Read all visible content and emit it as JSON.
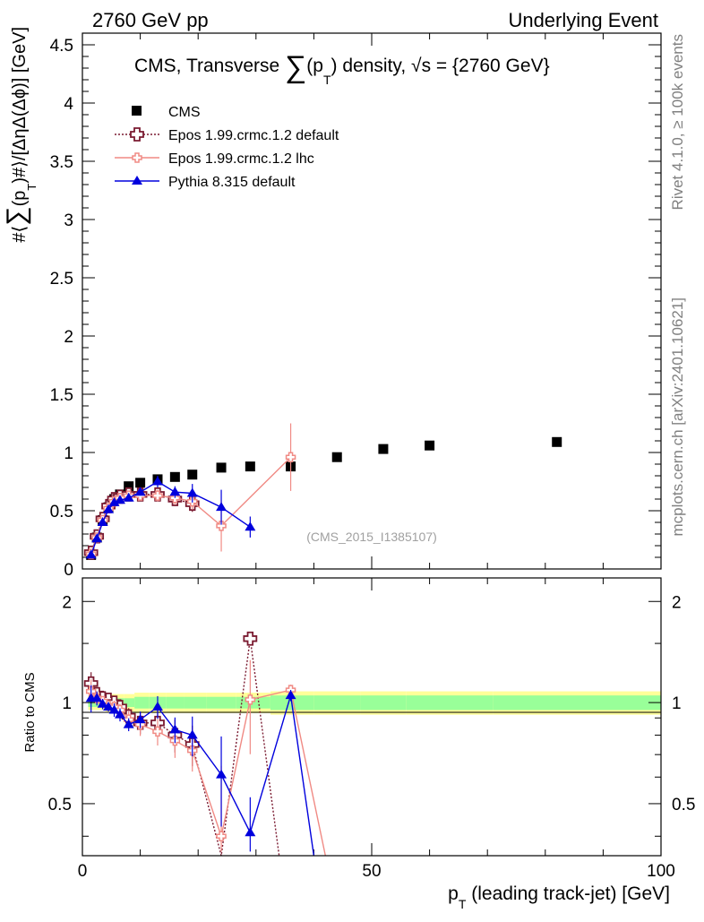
{
  "header": {
    "left": "2760 GeV pp",
    "right": "Underlying Event",
    "side_rivet": "Rivet 4.1.0, ≥ 100k events",
    "side_mcplots": "mcplots.cern.ch [arXiv:2401.10621]"
  },
  "chart_data": {
    "type": "scatter",
    "title_parts": [
      "CMS, Transverse ",
      "∑",
      "(p",
      "T",
      ") density, ",
      "√",
      "s = {2760 GeV}"
    ],
    "ylabel_parts": [
      "#⟨",
      "∑",
      "(p",
      "T",
      ")#⟩/[ΔηΔ(Δϕ)] [GeV]"
    ],
    "xlabel_parts": [
      "p",
      "T",
      " (leading track-jet) [GeV]"
    ],
    "ratio_ylabel": "Ratio to CMS",
    "watermark": "(CMS_2015_I1385107)",
    "xlim": [
      0,
      100
    ],
    "ylim": [
      0,
      4.6
    ],
    "ratio_ylim": [
      0.35,
      2.35
    ],
    "xticks": [
      0,
      50,
      100
    ],
    "yticks": [
      0,
      0.5,
      1,
      1.5,
      2,
      2.5,
      3,
      3.5,
      4,
      4.5
    ],
    "xtick_labels": [
      "0",
      "50",
      "100"
    ],
    "ytick_labels": [
      "0",
      "0.5",
      "1",
      "1.5",
      "2",
      "2.5",
      "3",
      "3.5",
      "4",
      "4.5"
    ],
    "ratio_ytick_labels": [
      "0.5",
      "1",
      "2"
    ],
    "ratio_yticks": [
      0.5,
      1,
      2
    ],
    "legend": [
      "CMS",
      "Epos 1.99.crmc.1.2 default",
      "Epos 1.99.crmc.1.2 lhc",
      "Pythia 8.315 default"
    ],
    "data": {
      "name": "CMS",
      "x": [
        1.5,
        2.5,
        3.5,
        4.5,
        5.5,
        6.5,
        8,
        10,
        13,
        16,
        19,
        24,
        29,
        36,
        44,
        52,
        60,
        82
      ],
      "y": [
        0.12,
        0.27,
        0.42,
        0.53,
        0.6,
        0.64,
        0.71,
        0.74,
        0.77,
        0.79,
        0.81,
        0.87,
        0.88,
        0.88,
        0.96,
        1.03,
        1.06,
        1.09
      ]
    },
    "series": [
      {
        "name": "Epos 1.99.crmc.1.2 default",
        "color": "#7a1a30",
        "x": [
          1.5,
          2.5,
          3.5,
          4.5,
          5.5,
          6.5,
          8,
          10,
          13,
          16,
          19
        ],
        "y": [
          0.14,
          0.28,
          0.43,
          0.54,
          0.6,
          0.62,
          0.64,
          0.64,
          0.64,
          0.6,
          0.56
        ],
        "yerr": [
          0.01,
          0.01,
          0.01,
          0.01,
          0.02,
          0.02,
          0.03,
          0.04,
          0.05,
          0.06,
          0.07
        ],
        "ratio": [
          1.14,
          1.06,
          1.03,
          1.02,
          1.0,
          0.97,
          0.91,
          0.87,
          0.87,
          0.8,
          0.75,
          0.3,
          1.55,
          0.3
        ],
        "ratio_x": [
          1.5,
          2.5,
          3.5,
          4.5,
          5.5,
          6.5,
          8,
          10,
          13,
          16,
          19,
          24,
          29,
          34
        ]
      },
      {
        "name": "Epos 1.99.crmc.1.2 lhc",
        "color": "#f08a84",
        "x": [
          1.5,
          2.5,
          3.5,
          4.5,
          5.5,
          6.5,
          8,
          10,
          13,
          16,
          19,
          24,
          36
        ],
        "y": [
          0.13,
          0.27,
          0.42,
          0.52,
          0.58,
          0.61,
          0.63,
          0.63,
          0.63,
          0.61,
          0.58,
          0.37,
          0.96
        ],
        "yerr": [
          0.01,
          0.01,
          0.01,
          0.01,
          0.02,
          0.02,
          0.03,
          0.04,
          0.05,
          0.06,
          0.07,
          0.22,
          0.29
        ],
        "ratio": [
          1.08,
          1.03,
          1.01,
          0.98,
          0.97,
          0.95,
          0.89,
          0.86,
          0.82,
          0.77,
          0.72,
          0.4,
          1.02,
          1.09,
          0.3
        ],
        "ratio_x": [
          1.5,
          2.5,
          3.5,
          4.5,
          5.5,
          6.5,
          8,
          10,
          13,
          16,
          19,
          24,
          29,
          36,
          42
        ]
      },
      {
        "name": "Pythia 8.315 default",
        "color": "#0000dd",
        "x": [
          1.5,
          2.5,
          3.5,
          4.5,
          5.5,
          6.5,
          8,
          10,
          13,
          16,
          19,
          24,
          29
        ],
        "y": [
          0.12,
          0.26,
          0.4,
          0.51,
          0.57,
          0.59,
          0.61,
          0.66,
          0.75,
          0.66,
          0.65,
          0.53,
          0.36
        ],
        "yerr": [
          0.01,
          0.01,
          0.01,
          0.01,
          0.02,
          0.02,
          0.02,
          0.03,
          0.05,
          0.05,
          0.08,
          0.15,
          0.09
        ],
        "ratio": [
          1.03,
          1.03,
          0.99,
          0.97,
          0.95,
          0.92,
          0.86,
          0.89,
          0.97,
          0.83,
          0.8,
          0.61,
          0.41,
          1.05,
          0.3
        ],
        "ratio_x": [
          1.5,
          2.5,
          3.5,
          4.5,
          5.5,
          6.5,
          8,
          10,
          13,
          16,
          19,
          24,
          29,
          36,
          40
        ]
      }
    ],
    "ratio_band_colors": [
      "#ffff99",
      "#99ff99"
    ]
  }
}
